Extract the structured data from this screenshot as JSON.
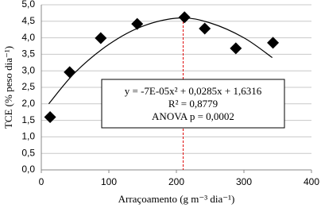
{
  "chart_data": {
    "type": "scatter",
    "x_label": "Arraçoamento (g m⁻³ dia⁻¹)",
    "y_label": "TCE (% peso dia⁻¹)",
    "series": [
      {
        "color": "#000000",
        "x": [
          13,
          42,
          88,
          142,
          212,
          242,
          288,
          343
        ],
        "values": [
          1.6,
          2.96,
          3.99,
          4.42,
          4.62,
          4.28,
          3.68,
          3.85
        ]
      }
    ],
    "trendline": {
      "color": "#000000",
      "x": [
        11,
        50,
        100,
        150,
        205,
        250,
        300,
        342
      ],
      "values": [
        2.0,
        2.95,
        3.8,
        4.35,
        4.6,
        4.45,
        4.0,
        3.4
      ]
    },
    "reference_line": {
      "x": 210,
      "color": "#e00000"
    },
    "annotation": [
      "y = -7E-05x² + 0,0285x + 1,6316",
      "R² = 0,8779",
      "ANOVA p = 0,0002"
    ],
    "xlim": [
      0,
      400
    ],
    "xticks": [
      0,
      100,
      200,
      300,
      400
    ],
    "ylim": [
      0,
      5
    ],
    "yticks": [
      {
        "value": 0,
        "label": "0,0"
      },
      {
        "value": 0.5,
        "label": "0,5"
      },
      {
        "value": 1,
        "label": "1,0"
      },
      {
        "value": 1.5,
        "label": "1,5"
      },
      {
        "value": 2,
        "label": "2,0"
      },
      {
        "value": 2.5,
        "label": "2,5"
      },
      {
        "value": 3,
        "label": "3,0"
      },
      {
        "value": 3.5,
        "label": "3,5"
      },
      {
        "value": 4,
        "label": "4,0"
      },
      {
        "value": 4.5,
        "label": "4,5"
      },
      {
        "value": 5,
        "label": "5,0"
      }
    ],
    "grid": true
  }
}
